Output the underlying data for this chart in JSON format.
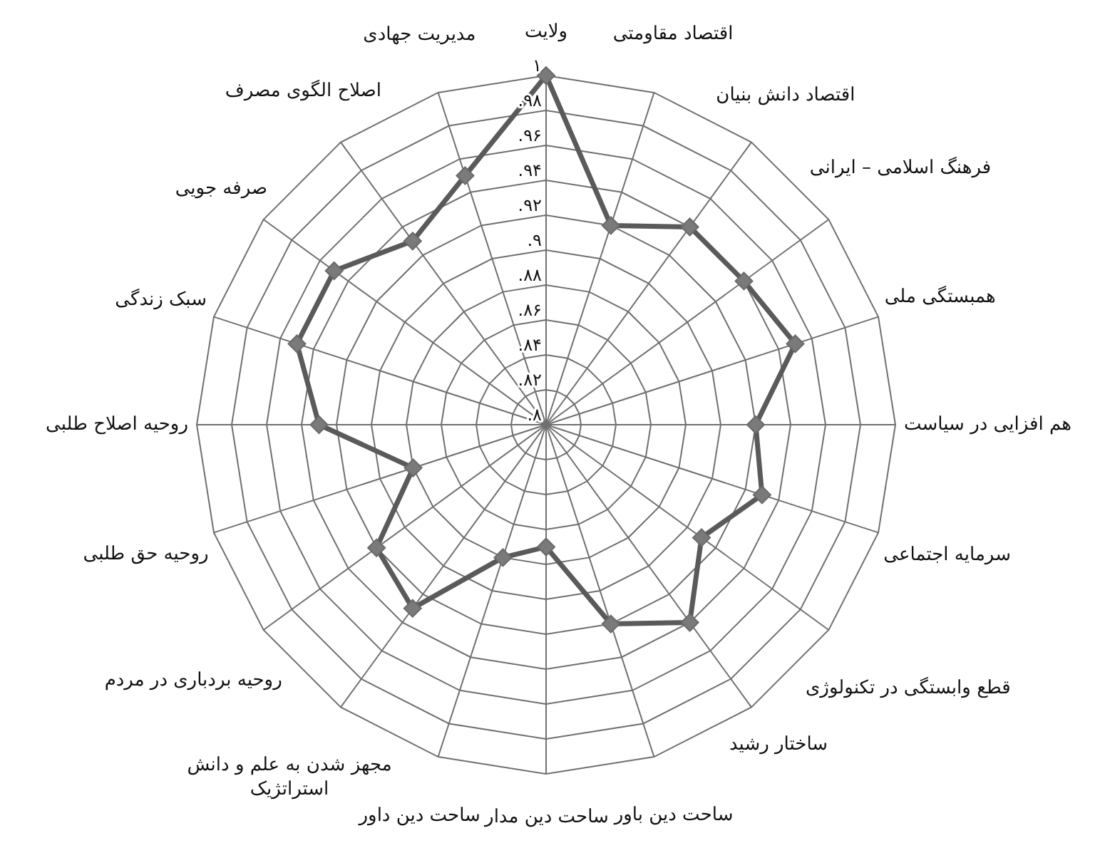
{
  "chart_data": {
    "type": "radar",
    "categories": [
      "ولایت",
      "اقتصاد مقاومتی",
      "اقتصاد دانش بنیان",
      "فرهنگ اسلامی – ایرانی",
      "همبستگی ملی",
      "هم افزایی در سیاست",
      "سرمایه اجتماعی",
      "قطع وابستگی در تکنولوژی",
      "ساختار رشید",
      "ساحت دین باور",
      "ساحت دین مدار",
      "ساحت دین داور",
      "مجهز شدن به علم و دانش استراتژیک",
      "روحیه بردباری در مردم",
      "روحیه حق طلبی",
      "روحیه اصلاح طلبی",
      "سبک زندگی",
      "صرفه جویی",
      "اصلاح الگوی مصرف",
      "مدیریت جهادی"
    ],
    "series": [
      {
        "color": "#5a5a5a",
        "values": [
          1.0,
          0.92,
          0.94,
          0.94,
          0.95,
          0.92,
          0.93,
          0.91,
          0.94,
          0.92,
          0.87,
          0.88,
          0.93,
          0.92,
          0.88,
          0.93,
          0.95,
          0.95,
          0.93,
          0.95
        ]
      }
    ],
    "ylim": [
      0.8,
      1
    ],
    "yticks": [
      {
        "value": 0.8,
        "label": ".۸"
      },
      {
        "value": 0.82,
        "label": ".۸۲"
      },
      {
        "value": 0.84,
        "label": ".۸۴"
      },
      {
        "value": 0.86,
        "label": ".۸۶"
      },
      {
        "value": 0.88,
        "label": ".۸۸"
      },
      {
        "value": 0.9,
        "label": ".۹"
      },
      {
        "value": 0.92,
        "label": ".۹۲"
      },
      {
        "value": 0.94,
        "label": ".۹۴"
      },
      {
        "value": 0.96,
        "label": ".۹۶"
      },
      {
        "value": 0.98,
        "label": ".۹۸"
      },
      {
        "value": 1,
        "label": "۱"
      }
    ],
    "grid": true,
    "marker": "diamond",
    "line_style": "solid"
  }
}
